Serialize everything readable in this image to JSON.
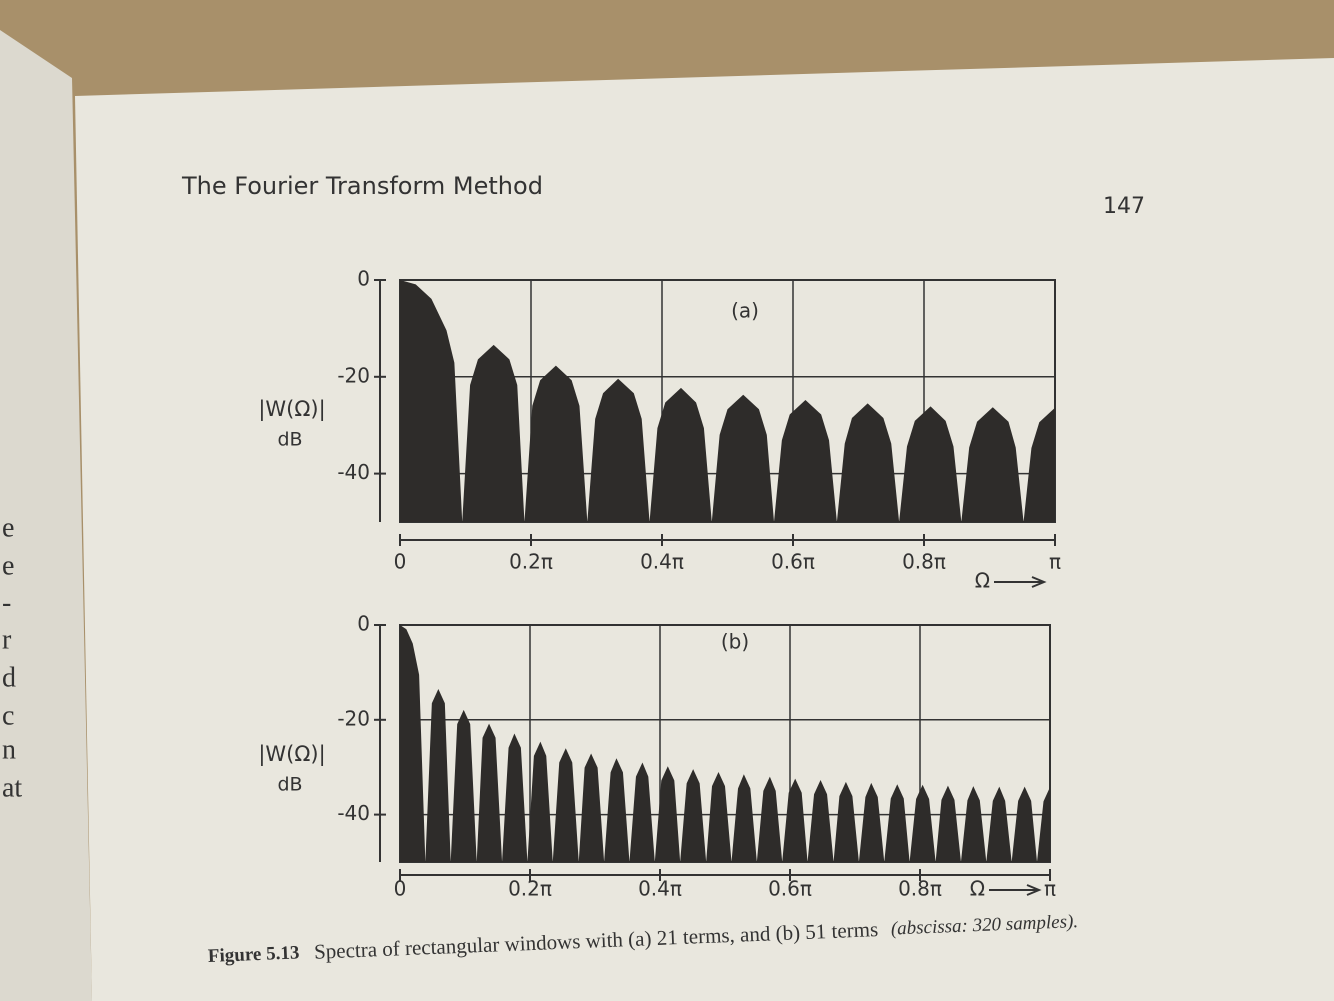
{
  "header": {
    "title": "The Fourier Transform Method",
    "page_number": "147"
  },
  "left_page_fragments": [
    "e",
    "e",
    "-",
    "r",
    "d",
    "c",
    "n",
    "at"
  ],
  "chart_data": [
    {
      "type": "area",
      "panel_label": "(a)",
      "ylabel": "|W(Ω)|",
      "yunit": "dB",
      "xlabel": "Ω",
      "color": "#2e2c2a",
      "x": [
        0,
        0.024,
        0.048,
        0.071,
        0.083,
        0.095,
        0.107,
        0.119,
        0.143,
        0.167,
        0.179,
        0.19,
        0.202,
        0.214,
        0.238,
        0.262,
        0.274,
        0.286,
        0.298,
        0.31,
        0.333,
        0.357,
        0.369,
        0.381,
        0.393,
        0.405,
        0.429,
        0.452,
        0.464,
        0.476,
        0.488,
        0.5,
        0.524,
        0.548,
        0.56,
        0.571,
        0.583,
        0.595,
        0.619,
        0.643,
        0.655,
        0.667,
        0.679,
        0.69,
        0.714,
        0.738,
        0.75,
        0.762,
        0.774,
        0.786,
        0.81,
        0.833,
        0.845,
        0.857,
        0.869,
        0.881,
        0.905,
        0.929,
        0.94,
        0.952,
        0.964,
        0.976,
        1.0
      ],
      "values": [
        0,
        -0.9,
        -3.9,
        -10.4,
        -17.1,
        -50,
        -21.7,
        -16.4,
        -13.4,
        -16.4,
        -21.7,
        -50,
        -26.0,
        -20.7,
        -17.7,
        -20.7,
        -26.0,
        -50,
        -28.7,
        -23.4,
        -20.4,
        -23.4,
        -28.7,
        -50,
        -30.6,
        -25.3,
        -22.3,
        -25.3,
        -30.6,
        -50,
        -32.0,
        -26.7,
        -23.7,
        -26.7,
        -32.0,
        -50,
        -33.1,
        -27.8,
        -24.8,
        -27.8,
        -33.1,
        -50,
        -33.8,
        -28.5,
        -25.5,
        -28.5,
        -33.8,
        -50,
        -34.4,
        -29.1,
        -26.1,
        -29.1,
        -34.4,
        -50,
        -34.6,
        -29.3,
        -26.3,
        -29.3,
        -34.6,
        -50,
        -34.7,
        -29.4,
        -26.4
      ],
      "xlim": [
        0,
        1
      ],
      "ylim": [
        -50,
        0
      ],
      "xticks": [
        0,
        {
          "value": 0.2,
          "label": "0.2π"
        },
        {
          "value": 0.4,
          "label": "0.4π"
        },
        {
          "value": 0.6,
          "label": "0.6π"
        },
        {
          "value": 0.8,
          "label": "0.8π"
        },
        {
          "value": 1,
          "label": "π"
        }
      ],
      "yticks": [
        0,
        -20,
        -40
      ],
      "grid": true
    },
    {
      "type": "area",
      "panel_label": "(b)",
      "ylabel": "|W(Ω)|",
      "yunit": "dB",
      "xlabel": "Ω",
      "color": "#2e2c2a",
      "x": [
        0,
        0.0098,
        0.0196,
        0.0294,
        0.039,
        0.049,
        0.059,
        0.069,
        0.078,
        0.088,
        0.098,
        0.108,
        0.118,
        0.127,
        0.137,
        0.147,
        0.157,
        0.167,
        0.176,
        0.186,
        0.196,
        0.206,
        0.216,
        0.225,
        0.235,
        0.245,
        0.255,
        0.265,
        0.275,
        0.284,
        0.294,
        0.304,
        0.314,
        0.324,
        0.333,
        0.343,
        0.353,
        0.363,
        0.373,
        0.382,
        0.392,
        0.402,
        0.412,
        0.422,
        0.431,
        0.441,
        0.451,
        0.461,
        0.471,
        0.48,
        0.49,
        0.5,
        0.51,
        0.52,
        0.529,
        0.539,
        0.549,
        0.559,
        0.569,
        0.578,
        0.588,
        0.598,
        0.608,
        0.618,
        0.627,
        0.637,
        0.647,
        0.657,
        0.667,
        0.676,
        0.686,
        0.696,
        0.706,
        0.716,
        0.725,
        0.735,
        0.745,
        0.755,
        0.765,
        0.775,
        0.784,
        0.794,
        0.804,
        0.814,
        0.824,
        0.833,
        0.843,
        0.853,
        0.863,
        0.873,
        0.882,
        0.892,
        0.902,
        0.912,
        0.922,
        0.931,
        0.941,
        0.951,
        0.961,
        0.971,
        0.98,
        0.99,
        1.0
      ],
      "values": [
        0,
        -0.9,
        -3.9,
        -10.5,
        -50,
        -16.5,
        -13.5,
        -16.5,
        -50,
        -20.9,
        -17.9,
        -20.9,
        -50,
        -23.8,
        -20.8,
        -23.8,
        -50,
        -25.9,
        -22.9,
        -25.9,
        -50,
        -27.6,
        -24.6,
        -27.6,
        -50,
        -29.0,
        -26.0,
        -29.0,
        -50,
        -30.1,
        -27.1,
        -30.1,
        -50,
        -31.1,
        -28.1,
        -31.1,
        -50,
        -32.0,
        -29.0,
        -32.0,
        -50,
        -32.8,
        -29.8,
        -32.8,
        -50,
        -33.4,
        -30.4,
        -33.4,
        -50,
        -34.0,
        -31.0,
        -34.0,
        -50,
        -34.5,
        -31.5,
        -34.5,
        -50,
        -35.0,
        -32.0,
        -35.0,
        -50,
        -35.4,
        -32.4,
        -35.4,
        -50,
        -35.7,
        -32.7,
        -35.7,
        -50,
        -36.1,
        -33.1,
        -36.1,
        -50,
        -36.3,
        -33.3,
        -36.3,
        -50,
        -36.6,
        -33.6,
        -36.6,
        -50,
        -36.7,
        -33.7,
        -36.7,
        -50,
        -36.9,
        -33.9,
        -36.9,
        -50,
        -37.0,
        -34.0,
        -37.0,
        -50,
        -37.1,
        -34.1,
        -37.1,
        -50,
        -37.1,
        -34.1,
        -37.1,
        -50,
        -37.2,
        -34.2
      ],
      "xlim": [
        0,
        1
      ],
      "ylim": [
        -50,
        0
      ],
      "xticks": [
        0,
        {
          "value": 0.2,
          "label": "0.2π"
        },
        {
          "value": 0.4,
          "label": "0.4π"
        },
        {
          "value": 0.6,
          "label": "0.6π"
        },
        {
          "value": 0.8,
          "label": "0.8π"
        },
        {
          "value": 1,
          "label": "π"
        }
      ],
      "yticks": [
        0,
        -20,
        -40
      ],
      "grid": true
    }
  ],
  "caption": {
    "label": "Figure 5.13",
    "text": "Spectra of rectangular windows with (a) 21 terms, and (b) 51 terms",
    "note": "(abscissa: 320 samples)."
  }
}
